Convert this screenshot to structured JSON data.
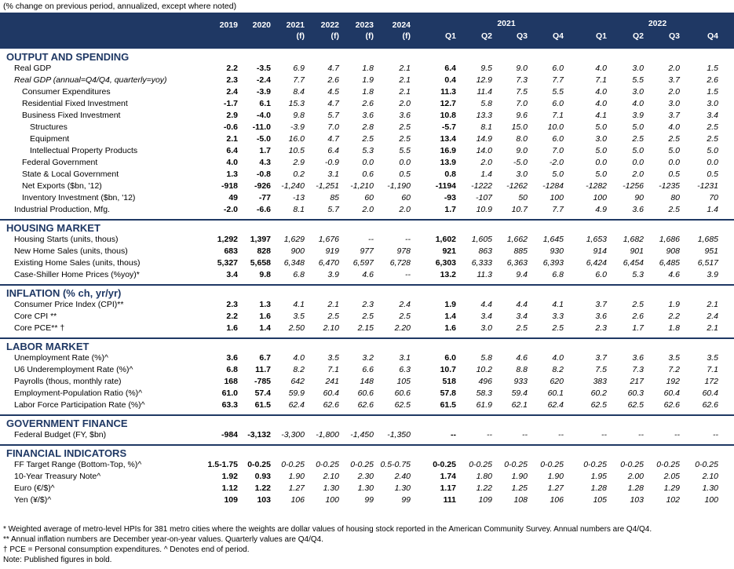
{
  "subtitle": "(% change on previous period, annualized, except where noted)",
  "header": {
    "annual": [
      {
        "year": "2019",
        "sub": ""
      },
      {
        "year": "2020",
        "sub": ""
      },
      {
        "year": "2021",
        "sub": "(f)"
      },
      {
        "year": "2022",
        "sub": "(f)"
      },
      {
        "year": "2023",
        "sub": "(f)"
      },
      {
        "year": "2024",
        "sub": "(f)"
      }
    ],
    "group2021": "2021",
    "group2022": "2022",
    "quarters": [
      "Q1",
      "Q2",
      "Q3",
      "Q4",
      "Q1",
      "Q2",
      "Q3",
      "Q4"
    ]
  },
  "sections": [
    {
      "title": "OUTPUT AND SPENDING",
      "rows": [
        {
          "label": "Real GDP",
          "a": [
            "2.2",
            "-3.5",
            "6.9",
            "4.7",
            "1.8",
            "2.1"
          ],
          "q": [
            "6.4",
            "9.5",
            "9.0",
            "6.0",
            "4.0",
            "3.0",
            "2.0",
            "1.5"
          ],
          "ind": 0
        },
        {
          "label": "Real GDP (annual=Q4/Q4, quarterly=yoy)",
          "a": [
            "2.3",
            "-2.4",
            "7.7",
            "2.6",
            "1.9",
            "2.1"
          ],
          "q": [
            "0.4",
            "12.9",
            "7.3",
            "7.7",
            "7.1",
            "5.5",
            "3.7",
            "2.6"
          ],
          "ind": 0,
          "italic": true
        },
        {
          "label": "Consumer Expenditures",
          "a": [
            "2.4",
            "-3.9",
            "8.4",
            "4.5",
            "1.8",
            "2.1"
          ],
          "q": [
            "11.3",
            "11.4",
            "7.5",
            "5.5",
            "4.0",
            "3.0",
            "2.0",
            "1.5"
          ],
          "ind": 1
        },
        {
          "label": "Residential Fixed Investment",
          "a": [
            "-1.7",
            "6.1",
            "15.3",
            "4.7",
            "2.6",
            "2.0"
          ],
          "q": [
            "12.7",
            "5.8",
            "7.0",
            "6.0",
            "4.0",
            "4.0",
            "3.0",
            "3.0"
          ],
          "ind": 1
        },
        {
          "label": "Business Fixed Investment",
          "a": [
            "2.9",
            "-4.0",
            "9.8",
            "5.7",
            "3.6",
            "3.6"
          ],
          "q": [
            "10.8",
            "13.3",
            "9.6",
            "7.1",
            "4.1",
            "3.9",
            "3.7",
            "3.4"
          ],
          "ind": 1
        },
        {
          "label": "Structures",
          "a": [
            "-0.6",
            "-11.0",
            "-3.9",
            "7.0",
            "2.8",
            "2.5"
          ],
          "q": [
            "-5.7",
            "8.1",
            "15.0",
            "10.0",
            "5.0",
            "5.0",
            "4.0",
            "2.5"
          ],
          "ind": 2
        },
        {
          "label": "Equipment",
          "a": [
            "2.1",
            "-5.0",
            "16.0",
            "4.7",
            "2.5",
            "2.5"
          ],
          "q": [
            "13.4",
            "14.9",
            "8.0",
            "6.0",
            "3.0",
            "2.5",
            "2.5",
            "2.5"
          ],
          "ind": 2
        },
        {
          "label": "Intellectual Property Products",
          "a": [
            "6.4",
            "1.7",
            "10.5",
            "6.4",
            "5.3",
            "5.5"
          ],
          "q": [
            "16.9",
            "14.0",
            "9.0",
            "7.0",
            "5.0",
            "5.0",
            "5.0",
            "5.0"
          ],
          "ind": 2
        },
        {
          "label": "Federal Government",
          "a": [
            "4.0",
            "4.3",
            "2.9",
            "-0.9",
            "0.0",
            "0.0"
          ],
          "q": [
            "13.9",
            "2.0",
            "-5.0",
            "-2.0",
            "0.0",
            "0.0",
            "0.0",
            "0.0"
          ],
          "ind": 1
        },
        {
          "label": "State & Local Government",
          "a": [
            "1.3",
            "-0.8",
            "0.2",
            "3.1",
            "0.6",
            "0.5"
          ],
          "q": [
            "0.8",
            "1.4",
            "3.0",
            "5.0",
            "5.0",
            "2.0",
            "0.5",
            "0.5"
          ],
          "ind": 1
        },
        {
          "label": "Net Exports ($bn, '12)",
          "a": [
            "-918",
            "-926",
            "-1,240",
            "-1,251",
            "-1,210",
            "-1,190"
          ],
          "q": [
            "-1194",
            "-1222",
            "-1262",
            "-1284",
            "-1282",
            "-1256",
            "-1235",
            "-1231"
          ],
          "ind": 1
        },
        {
          "label": "Inventory Investment ($bn, '12)",
          "a": [
            "49",
            "-77",
            "-13",
            "85",
            "60",
            "60"
          ],
          "q": [
            "-93",
            "-107",
            "50",
            "100",
            "100",
            "90",
            "80",
            "70"
          ],
          "ind": 1
        },
        {
          "label": "Industrial Production, Mfg.",
          "a": [
            "-2.0",
            "-6.6",
            "8.1",
            "5.7",
            "2.0",
            "2.0"
          ],
          "q": [
            "1.7",
            "10.9",
            "10.7",
            "7.7",
            "4.9",
            "3.6",
            "2.5",
            "1.4"
          ],
          "ind": 0
        }
      ]
    },
    {
      "title": "HOUSING MARKET",
      "rows": [
        {
          "label": "Housing Starts (units, thous)",
          "a": [
            "1,292",
            "1,397",
            "1,629",
            "1,676",
            "--",
            "--"
          ],
          "q": [
            "1,602",
            "1,605",
            "1,662",
            "1,645",
            "1,653",
            "1,682",
            "1,686",
            "1,685"
          ],
          "ind": 0
        },
        {
          "label": "New Home Sales (units, thous)",
          "a": [
            "683",
            "828",
            "900",
            "919",
            "977",
            "978"
          ],
          "q": [
            "921",
            "863",
            "885",
            "930",
            "914",
            "901",
            "908",
            "951"
          ],
          "ind": 0
        },
        {
          "label": "Existing Home Sales (units, thous)",
          "a": [
            "5,327",
            "5,658",
            "6,348",
            "6,470",
            "6,597",
            "6,728"
          ],
          "q": [
            "6,303",
            "6,333",
            "6,363",
            "6,393",
            "6,424",
            "6,454",
            "6,485",
            "6,517"
          ],
          "ind": 0
        },
        {
          "label": "Case-Shiller Home Prices (%yoy)*",
          "a": [
            "3.4",
            "9.8",
            "6.8",
            "3.9",
            "4.6",
            "--"
          ],
          "q": [
            "13.2",
            "11.3",
            "9.4",
            "6.8",
            "6.0",
            "5.3",
            "4.6",
            "3.9"
          ],
          "ind": 0
        }
      ]
    },
    {
      "title": "INFLATION (% ch, yr/yr)",
      "rows": [
        {
          "label": "Consumer Price Index (CPI)**",
          "a": [
            "2.3",
            "1.3",
            "4.1",
            "2.1",
            "2.3",
            "2.4"
          ],
          "q": [
            "1.9",
            "4.4",
            "4.4",
            "4.1",
            "3.7",
            "2.5",
            "1.9",
            "2.1"
          ],
          "ind": 0
        },
        {
          "label": "Core CPI **",
          "a": [
            "2.2",
            "1.6",
            "3.5",
            "2.5",
            "2.5",
            "2.5"
          ],
          "q": [
            "1.4",
            "3.4",
            "3.4",
            "3.3",
            "3.6",
            "2.6",
            "2.2",
            "2.4"
          ],
          "ind": 0
        },
        {
          "label": "Core PCE** †",
          "a": [
            "1.6",
            "1.4",
            "2.50",
            "2.10",
            "2.15",
            "2.20"
          ],
          "q": [
            "1.6",
            "3.0",
            "2.5",
            "2.5",
            "2.3",
            "1.7",
            "1.8",
            "2.1"
          ],
          "ind": 0
        }
      ]
    },
    {
      "title": "LABOR MARKET",
      "rows": [
        {
          "label": "Unemployment Rate (%)^",
          "a": [
            "3.6",
            "6.7",
            "4.0",
            "3.5",
            "3.2",
            "3.1"
          ],
          "q": [
            "6.0",
            "5.8",
            "4.6",
            "4.0",
            "3.7",
            "3.6",
            "3.5",
            "3.5"
          ],
          "ind": 0
        },
        {
          "label": "U6 Underemployment Rate (%)^",
          "a": [
            "6.8",
            "11.7",
            "8.2",
            "7.1",
            "6.6",
            "6.3"
          ],
          "q": [
            "10.7",
            "10.2",
            "8.8",
            "8.2",
            "7.5",
            "7.3",
            "7.2",
            "7.1"
          ],
          "ind": 0
        },
        {
          "label": "Payrolls (thous, monthly rate)",
          "a": [
            "168",
            "-785",
            "642",
            "241",
            "148",
            "105"
          ],
          "q": [
            "518",
            "496",
            "933",
            "620",
            "383",
            "217",
            "192",
            "172"
          ],
          "ind": 0
        },
        {
          "label": "Employment-Population Ratio (%)^",
          "a": [
            "61.0",
            "57.4",
            "59.9",
            "60.4",
            "60.6",
            "60.6"
          ],
          "q": [
            "57.8",
            "58.3",
            "59.4",
            "60.1",
            "60.2",
            "60.3",
            "60.4",
            "60.4"
          ],
          "ind": 0
        },
        {
          "label": "Labor Force Participation Rate (%)^",
          "a": [
            "63.3",
            "61.5",
            "62.4",
            "62.6",
            "62.6",
            "62.5"
          ],
          "q": [
            "61.5",
            "61.9",
            "62.1",
            "62.4",
            "62.5",
            "62.5",
            "62.6",
            "62.6"
          ],
          "ind": 0
        }
      ]
    },
    {
      "title": "GOVERNMENT FINANCE",
      "rows": [
        {
          "label": "Federal Budget (FY, $bn)",
          "a": [
            "-984",
            "-3,132",
            "-3,300",
            "-1,800",
            "-1,450",
            "-1,350"
          ],
          "q": [
            "--",
            "--",
            "--",
            "--",
            "--",
            "--",
            "--",
            "--"
          ],
          "ind": 0
        }
      ]
    },
    {
      "title": "FINANCIAL INDICATORS",
      "rows": [
        {
          "label": "FF Target Range (Bottom-Top, %)^",
          "a": [
            "1.5-1.75",
            "0-0.25",
            "0-0.25",
            "0-0.25",
            "0-0.25",
            "0.5-0.75"
          ],
          "q": [
            "0-0.25",
            "0-0.25",
            "0-0.25",
            "0-0.25",
            "0-0.25",
            "0-0.25",
            "0-0.25",
            "0-0.25"
          ],
          "ind": 0
        },
        {
          "label": "10-Year Treasury Note^",
          "a": [
            "1.92",
            "0.93",
            "1.90",
            "2.10",
            "2.30",
            "2.40"
          ],
          "q": [
            "1.74",
            "1.80",
            "1.90",
            "1.90",
            "1.95",
            "2.00",
            "2.05",
            "2.10"
          ],
          "ind": 0
        },
        {
          "label": "Euro (€/$)^",
          "a": [
            "1.12",
            "1.22",
            "1.27",
            "1.30",
            "1.30",
            "1.30"
          ],
          "q": [
            "1.17",
            "1.22",
            "1.25",
            "1.27",
            "1.28",
            "1.28",
            "1.29",
            "1.30"
          ],
          "ind": 0
        },
        {
          "label": "Yen (¥/$)^",
          "a": [
            "109",
            "103",
            "106",
            "100",
            "99",
            "99"
          ],
          "q": [
            "111",
            "109",
            "108",
            "106",
            "105",
            "103",
            "102",
            "100"
          ],
          "ind": 0
        }
      ]
    }
  ],
  "notes": [
    "* Weighted average of metro-level HPIs for 381 metro cities where the weights are dollar values of housing stock reported in the American Community Survey. Annual numbers are Q4/Q4.",
    "** Annual inflation numbers are December year-on-year values. Quarterly values are Q4/Q4.",
    "† PCE = Personal consumption expenditures.  ^ Denotes end of period.",
    "Note: Published figures in bold."
  ]
}
